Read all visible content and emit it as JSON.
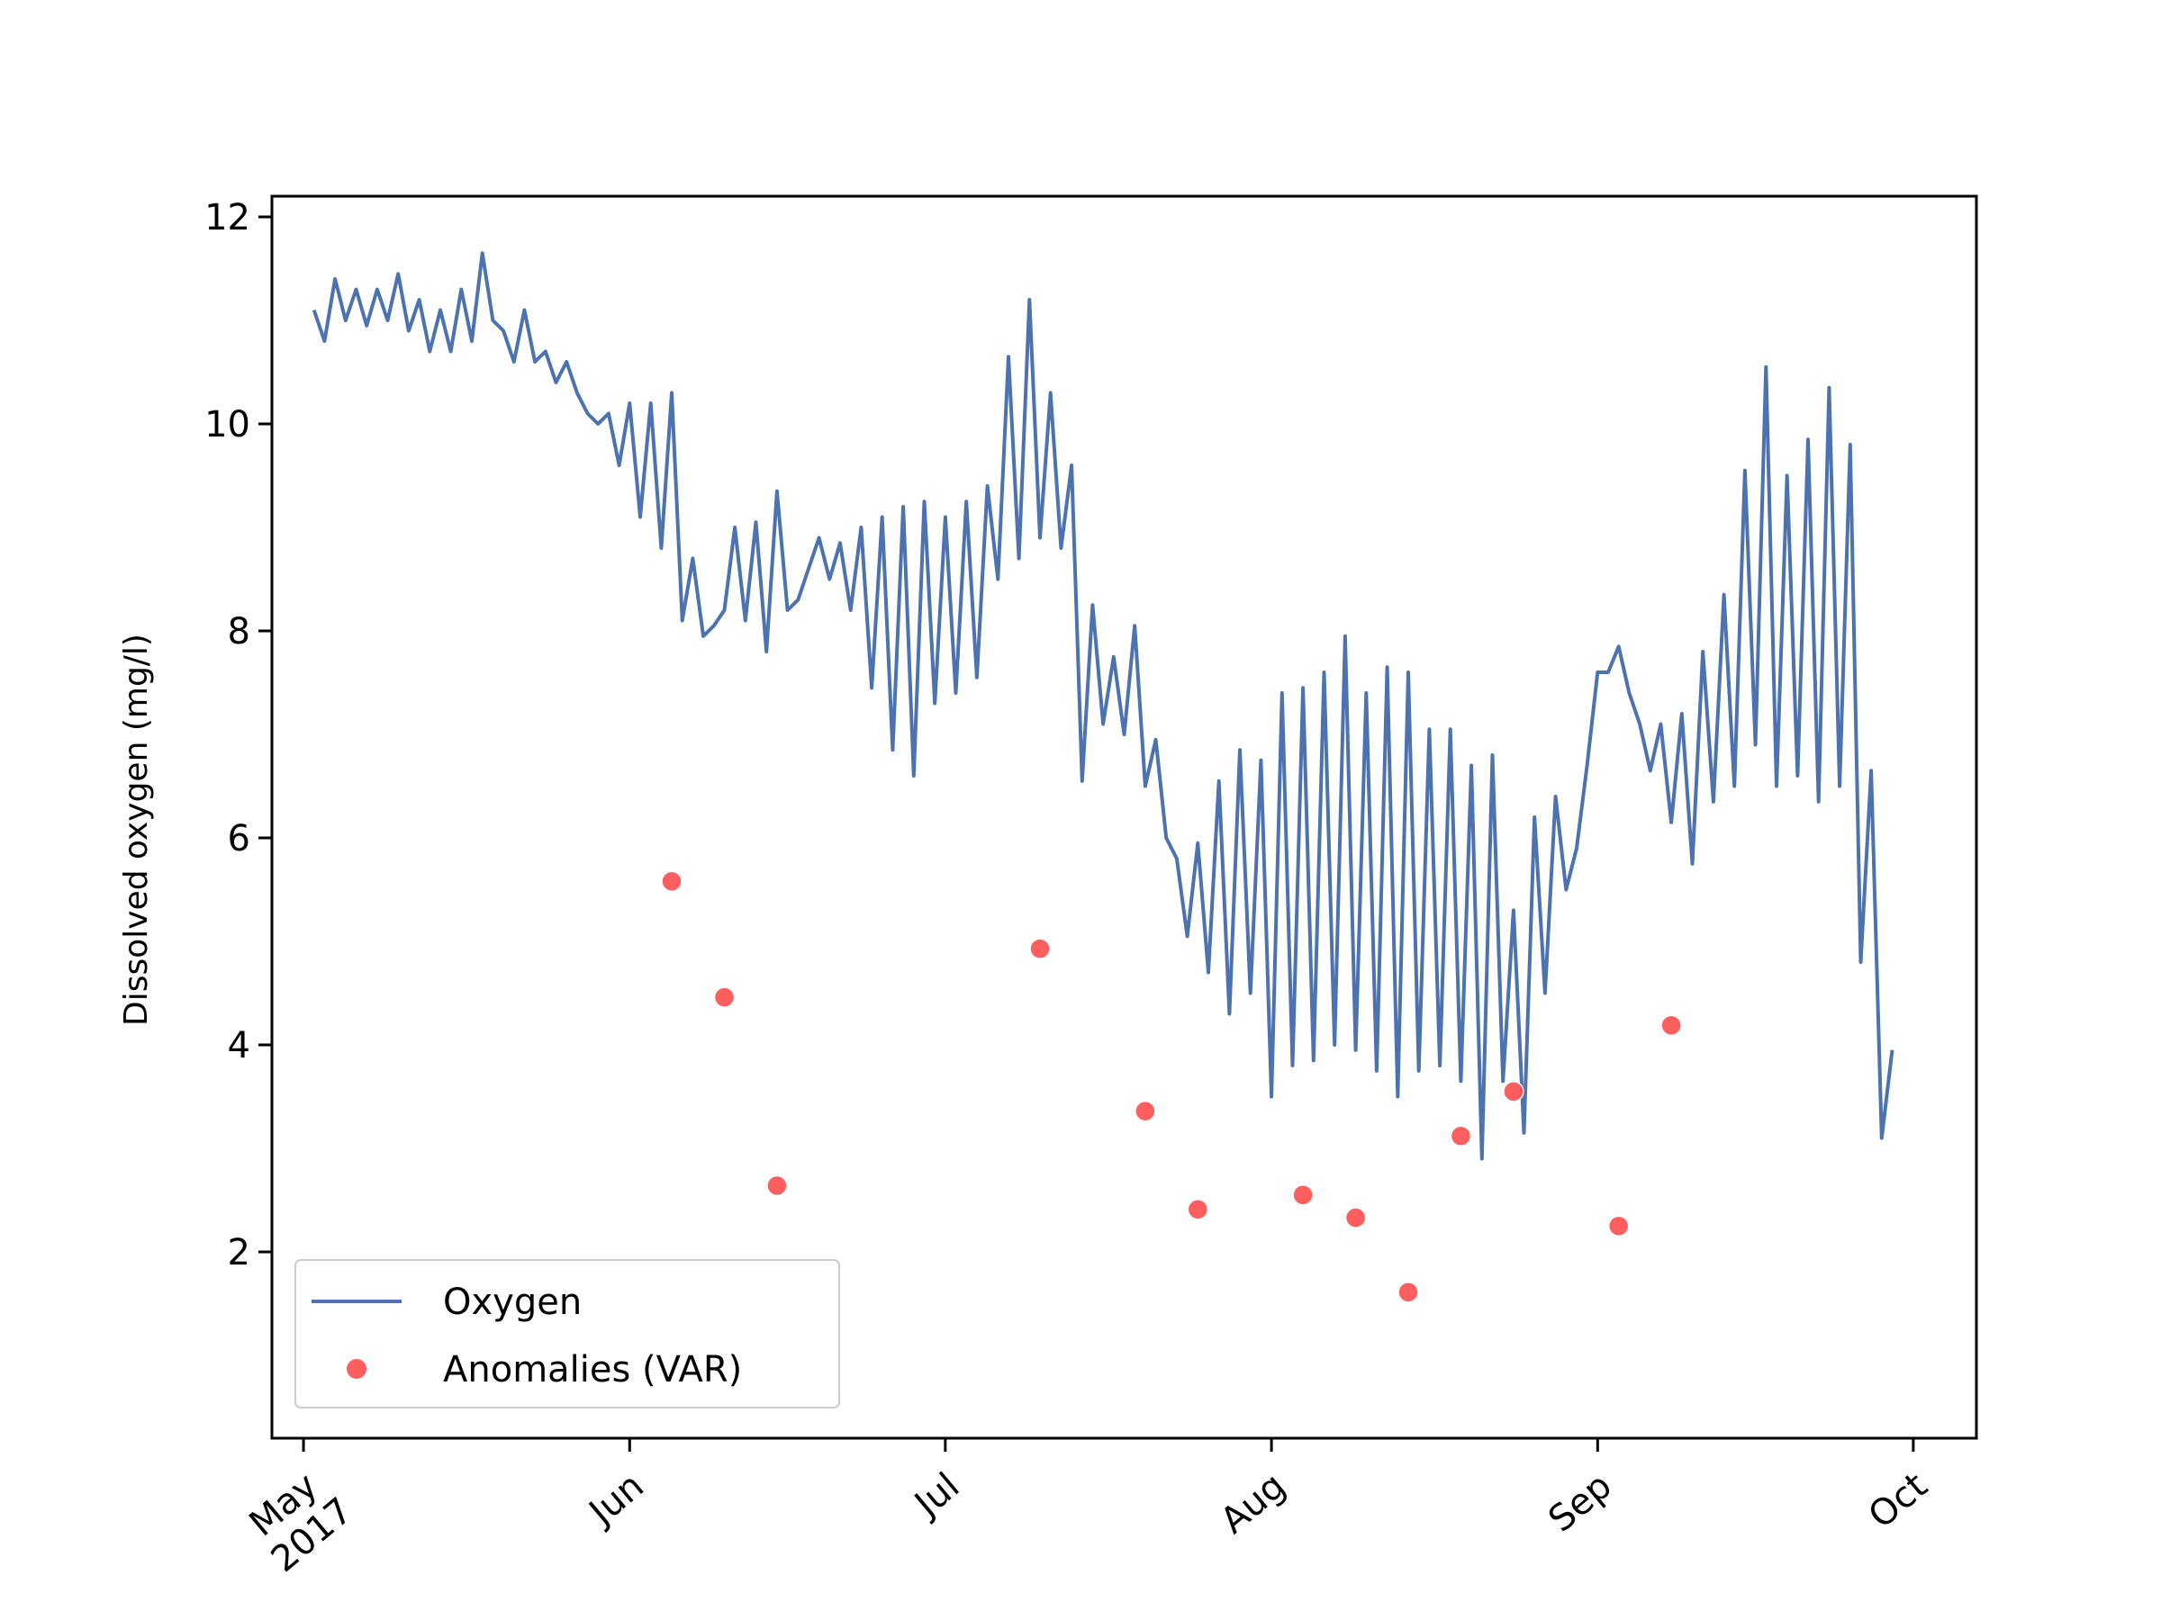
{
  "chart_data": {
    "type": "line",
    "ylabel": "Dissolved oxygen (mg/l)",
    "xlabel": "",
    "title": "",
    "ylim": [
      0.2,
      12.2
    ],
    "xlim": [
      "2017-04-28",
      "2017-10-07"
    ],
    "yticks": [
      2,
      4,
      6,
      8,
      10,
      12
    ],
    "xticks": [
      {
        "date": "2017-05-01",
        "label": "May",
        "sublabel": "2017"
      },
      {
        "date": "2017-06-01",
        "label": "Jun"
      },
      {
        "date": "2017-07-01",
        "label": "Jul"
      },
      {
        "date": "2017-08-01",
        "label": "Aug"
      },
      {
        "date": "2017-09-01",
        "label": "Sep"
      },
      {
        "date": "2017-10-01",
        "label": "Oct"
      }
    ],
    "grid": false,
    "legend": {
      "position": "lower-left"
    },
    "series": [
      {
        "name": "Oxygen",
        "kind": "line",
        "color": "#4c72b0",
        "points": [
          [
            "2017-05-02",
            11.1
          ],
          [
            "2017-05-03",
            10.8
          ],
          [
            "2017-05-04",
            11.4
          ],
          [
            "2017-05-05",
            11.0
          ],
          [
            "2017-05-06",
            11.3
          ],
          [
            "2017-05-07",
            10.95
          ],
          [
            "2017-05-08",
            11.3
          ],
          [
            "2017-05-09",
            11.0
          ],
          [
            "2017-05-10",
            11.45
          ],
          [
            "2017-05-11",
            10.9
          ],
          [
            "2017-05-12",
            11.2
          ],
          [
            "2017-05-13",
            10.7
          ],
          [
            "2017-05-14",
            11.1
          ],
          [
            "2017-05-15",
            10.7
          ],
          [
            "2017-05-16",
            11.3
          ],
          [
            "2017-05-17",
            10.8
          ],
          [
            "2017-05-18",
            11.65
          ],
          [
            "2017-05-19",
            11.0
          ],
          [
            "2017-05-20",
            10.9
          ],
          [
            "2017-05-21",
            10.6
          ],
          [
            "2017-05-22",
            11.1
          ],
          [
            "2017-05-23",
            10.6
          ],
          [
            "2017-05-24",
            10.7
          ],
          [
            "2017-05-25",
            10.4
          ],
          [
            "2017-05-26",
            10.6
          ],
          [
            "2017-05-27",
            10.3
          ],
          [
            "2017-05-28",
            10.1
          ],
          [
            "2017-05-29",
            10.0
          ],
          [
            "2017-05-30",
            10.1
          ],
          [
            "2017-05-31",
            9.6
          ],
          [
            "2017-06-01",
            10.2
          ],
          [
            "2017-06-02",
            9.1
          ],
          [
            "2017-06-03",
            10.2
          ],
          [
            "2017-06-04",
            8.8
          ],
          [
            "2017-06-05",
            10.3
          ],
          [
            "2017-06-06",
            8.1
          ],
          [
            "2017-06-07",
            8.7
          ],
          [
            "2017-06-08",
            7.95
          ],
          [
            "2017-06-09",
            8.05
          ],
          [
            "2017-06-10",
            8.2
          ],
          [
            "2017-06-11",
            9.0
          ],
          [
            "2017-06-12",
            8.1
          ],
          [
            "2017-06-13",
            9.05
          ],
          [
            "2017-06-14",
            7.8
          ],
          [
            "2017-06-15",
            9.35
          ],
          [
            "2017-06-16",
            8.2
          ],
          [
            "2017-06-17",
            8.3
          ],
          [
            "2017-06-18",
            8.6
          ],
          [
            "2017-06-19",
            8.9
          ],
          [
            "2017-06-20",
            8.5
          ],
          [
            "2017-06-21",
            8.85
          ],
          [
            "2017-06-22",
            8.2
          ],
          [
            "2017-06-23",
            9.0
          ],
          [
            "2017-06-24",
            7.45
          ],
          [
            "2017-06-25",
            9.1
          ],
          [
            "2017-06-26",
            6.85
          ],
          [
            "2017-06-27",
            9.2
          ],
          [
            "2017-06-28",
            6.6
          ],
          [
            "2017-06-29",
            9.25
          ],
          [
            "2017-06-30",
            7.3
          ],
          [
            "2017-07-01",
            9.1
          ],
          [
            "2017-07-02",
            7.4
          ],
          [
            "2017-07-03",
            9.25
          ],
          [
            "2017-07-04",
            7.55
          ],
          [
            "2017-07-05",
            9.4
          ],
          [
            "2017-07-06",
            8.5
          ],
          [
            "2017-07-07",
            10.65
          ],
          [
            "2017-07-08",
            8.7
          ],
          [
            "2017-07-09",
            11.2
          ],
          [
            "2017-07-10",
            8.9
          ],
          [
            "2017-07-11",
            10.3
          ],
          [
            "2017-07-12",
            8.8
          ],
          [
            "2017-07-13",
            9.6
          ],
          [
            "2017-07-14",
            6.55
          ],
          [
            "2017-07-15",
            8.25
          ],
          [
            "2017-07-16",
            7.1
          ],
          [
            "2017-07-17",
            7.75
          ],
          [
            "2017-07-18",
            7.0
          ],
          [
            "2017-07-19",
            8.05
          ],
          [
            "2017-07-20",
            6.5
          ],
          [
            "2017-07-21",
            6.95
          ],
          [
            "2017-07-22",
            6.0
          ],
          [
            "2017-07-23",
            5.8
          ],
          [
            "2017-07-24",
            5.05
          ],
          [
            "2017-07-25",
            5.95
          ],
          [
            "2017-07-26",
            4.7
          ],
          [
            "2017-07-27",
            6.55
          ],
          [
            "2017-07-28",
            4.3
          ],
          [
            "2017-07-29",
            6.85
          ],
          [
            "2017-07-30",
            4.5
          ],
          [
            "2017-07-31",
            6.75
          ],
          [
            "2017-08-01",
            3.5
          ],
          [
            "2017-08-02",
            7.4
          ],
          [
            "2017-08-03",
            3.8
          ],
          [
            "2017-08-04",
            7.45
          ],
          [
            "2017-08-05",
            3.85
          ],
          [
            "2017-08-06",
            7.6
          ],
          [
            "2017-08-07",
            4.0
          ],
          [
            "2017-08-08",
            7.95
          ],
          [
            "2017-08-09",
            3.95
          ],
          [
            "2017-08-10",
            7.4
          ],
          [
            "2017-08-11",
            3.75
          ],
          [
            "2017-08-12",
            7.65
          ],
          [
            "2017-08-13",
            3.5
          ],
          [
            "2017-08-14",
            7.6
          ],
          [
            "2017-08-15",
            3.75
          ],
          [
            "2017-08-16",
            7.05
          ],
          [
            "2017-08-17",
            3.8
          ],
          [
            "2017-08-18",
            7.05
          ],
          [
            "2017-08-19",
            3.65
          ],
          [
            "2017-08-20",
            6.7
          ],
          [
            "2017-08-21",
            2.9
          ],
          [
            "2017-08-22",
            6.8
          ],
          [
            "2017-08-23",
            3.65
          ],
          [
            "2017-08-24",
            5.3
          ],
          [
            "2017-08-25",
            3.15
          ],
          [
            "2017-08-26",
            6.2
          ],
          [
            "2017-08-27",
            4.5
          ],
          [
            "2017-08-28",
            6.4
          ],
          [
            "2017-08-29",
            5.5
          ],
          [
            "2017-08-30",
            5.9
          ],
          [
            "2017-08-31",
            6.7
          ],
          [
            "2017-09-01",
            7.6
          ],
          [
            "2017-09-02",
            7.6
          ],
          [
            "2017-09-03",
            7.85
          ],
          [
            "2017-09-04",
            7.4
          ],
          [
            "2017-09-05",
            7.1
          ],
          [
            "2017-09-06",
            6.65
          ],
          [
            "2017-09-07",
            7.1
          ],
          [
            "2017-09-08",
            6.15
          ],
          [
            "2017-09-09",
            7.2
          ],
          [
            "2017-09-10",
            5.75
          ],
          [
            "2017-09-11",
            7.8
          ],
          [
            "2017-09-12",
            6.35
          ],
          [
            "2017-09-13",
            8.35
          ],
          [
            "2017-09-14",
            6.5
          ],
          [
            "2017-09-15",
            9.55
          ],
          [
            "2017-09-16",
            6.9
          ],
          [
            "2017-09-17",
            10.55
          ],
          [
            "2017-09-18",
            6.5
          ],
          [
            "2017-09-19",
            9.5
          ],
          [
            "2017-09-20",
            6.6
          ],
          [
            "2017-09-21",
            9.85
          ],
          [
            "2017-09-22",
            6.35
          ],
          [
            "2017-09-23",
            10.35
          ],
          [
            "2017-09-24",
            6.5
          ],
          [
            "2017-09-25",
            9.8
          ],
          [
            "2017-09-26",
            4.8
          ],
          [
            "2017-09-27",
            6.65
          ],
          [
            "2017-09-28",
            3.1
          ],
          [
            "2017-09-29",
            3.95
          ]
        ]
      },
      {
        "name": "Anomalies (VAR)",
        "kind": "scatter",
        "color": "#ff4d4d",
        "points": [
          [
            "2017-06-05",
            5.58
          ],
          [
            "2017-06-10",
            4.46
          ],
          [
            "2017-06-15",
            2.64
          ],
          [
            "2017-07-10",
            4.93
          ],
          [
            "2017-07-20",
            3.36
          ],
          [
            "2017-07-25",
            2.41
          ],
          [
            "2017-08-04",
            2.55
          ],
          [
            "2017-08-09",
            2.33
          ],
          [
            "2017-08-14",
            1.61
          ],
          [
            "2017-08-19",
            3.12
          ],
          [
            "2017-08-24",
            3.55
          ],
          [
            "2017-09-03",
            2.25
          ],
          [
            "2017-09-08",
            4.19
          ]
        ]
      }
    ]
  }
}
